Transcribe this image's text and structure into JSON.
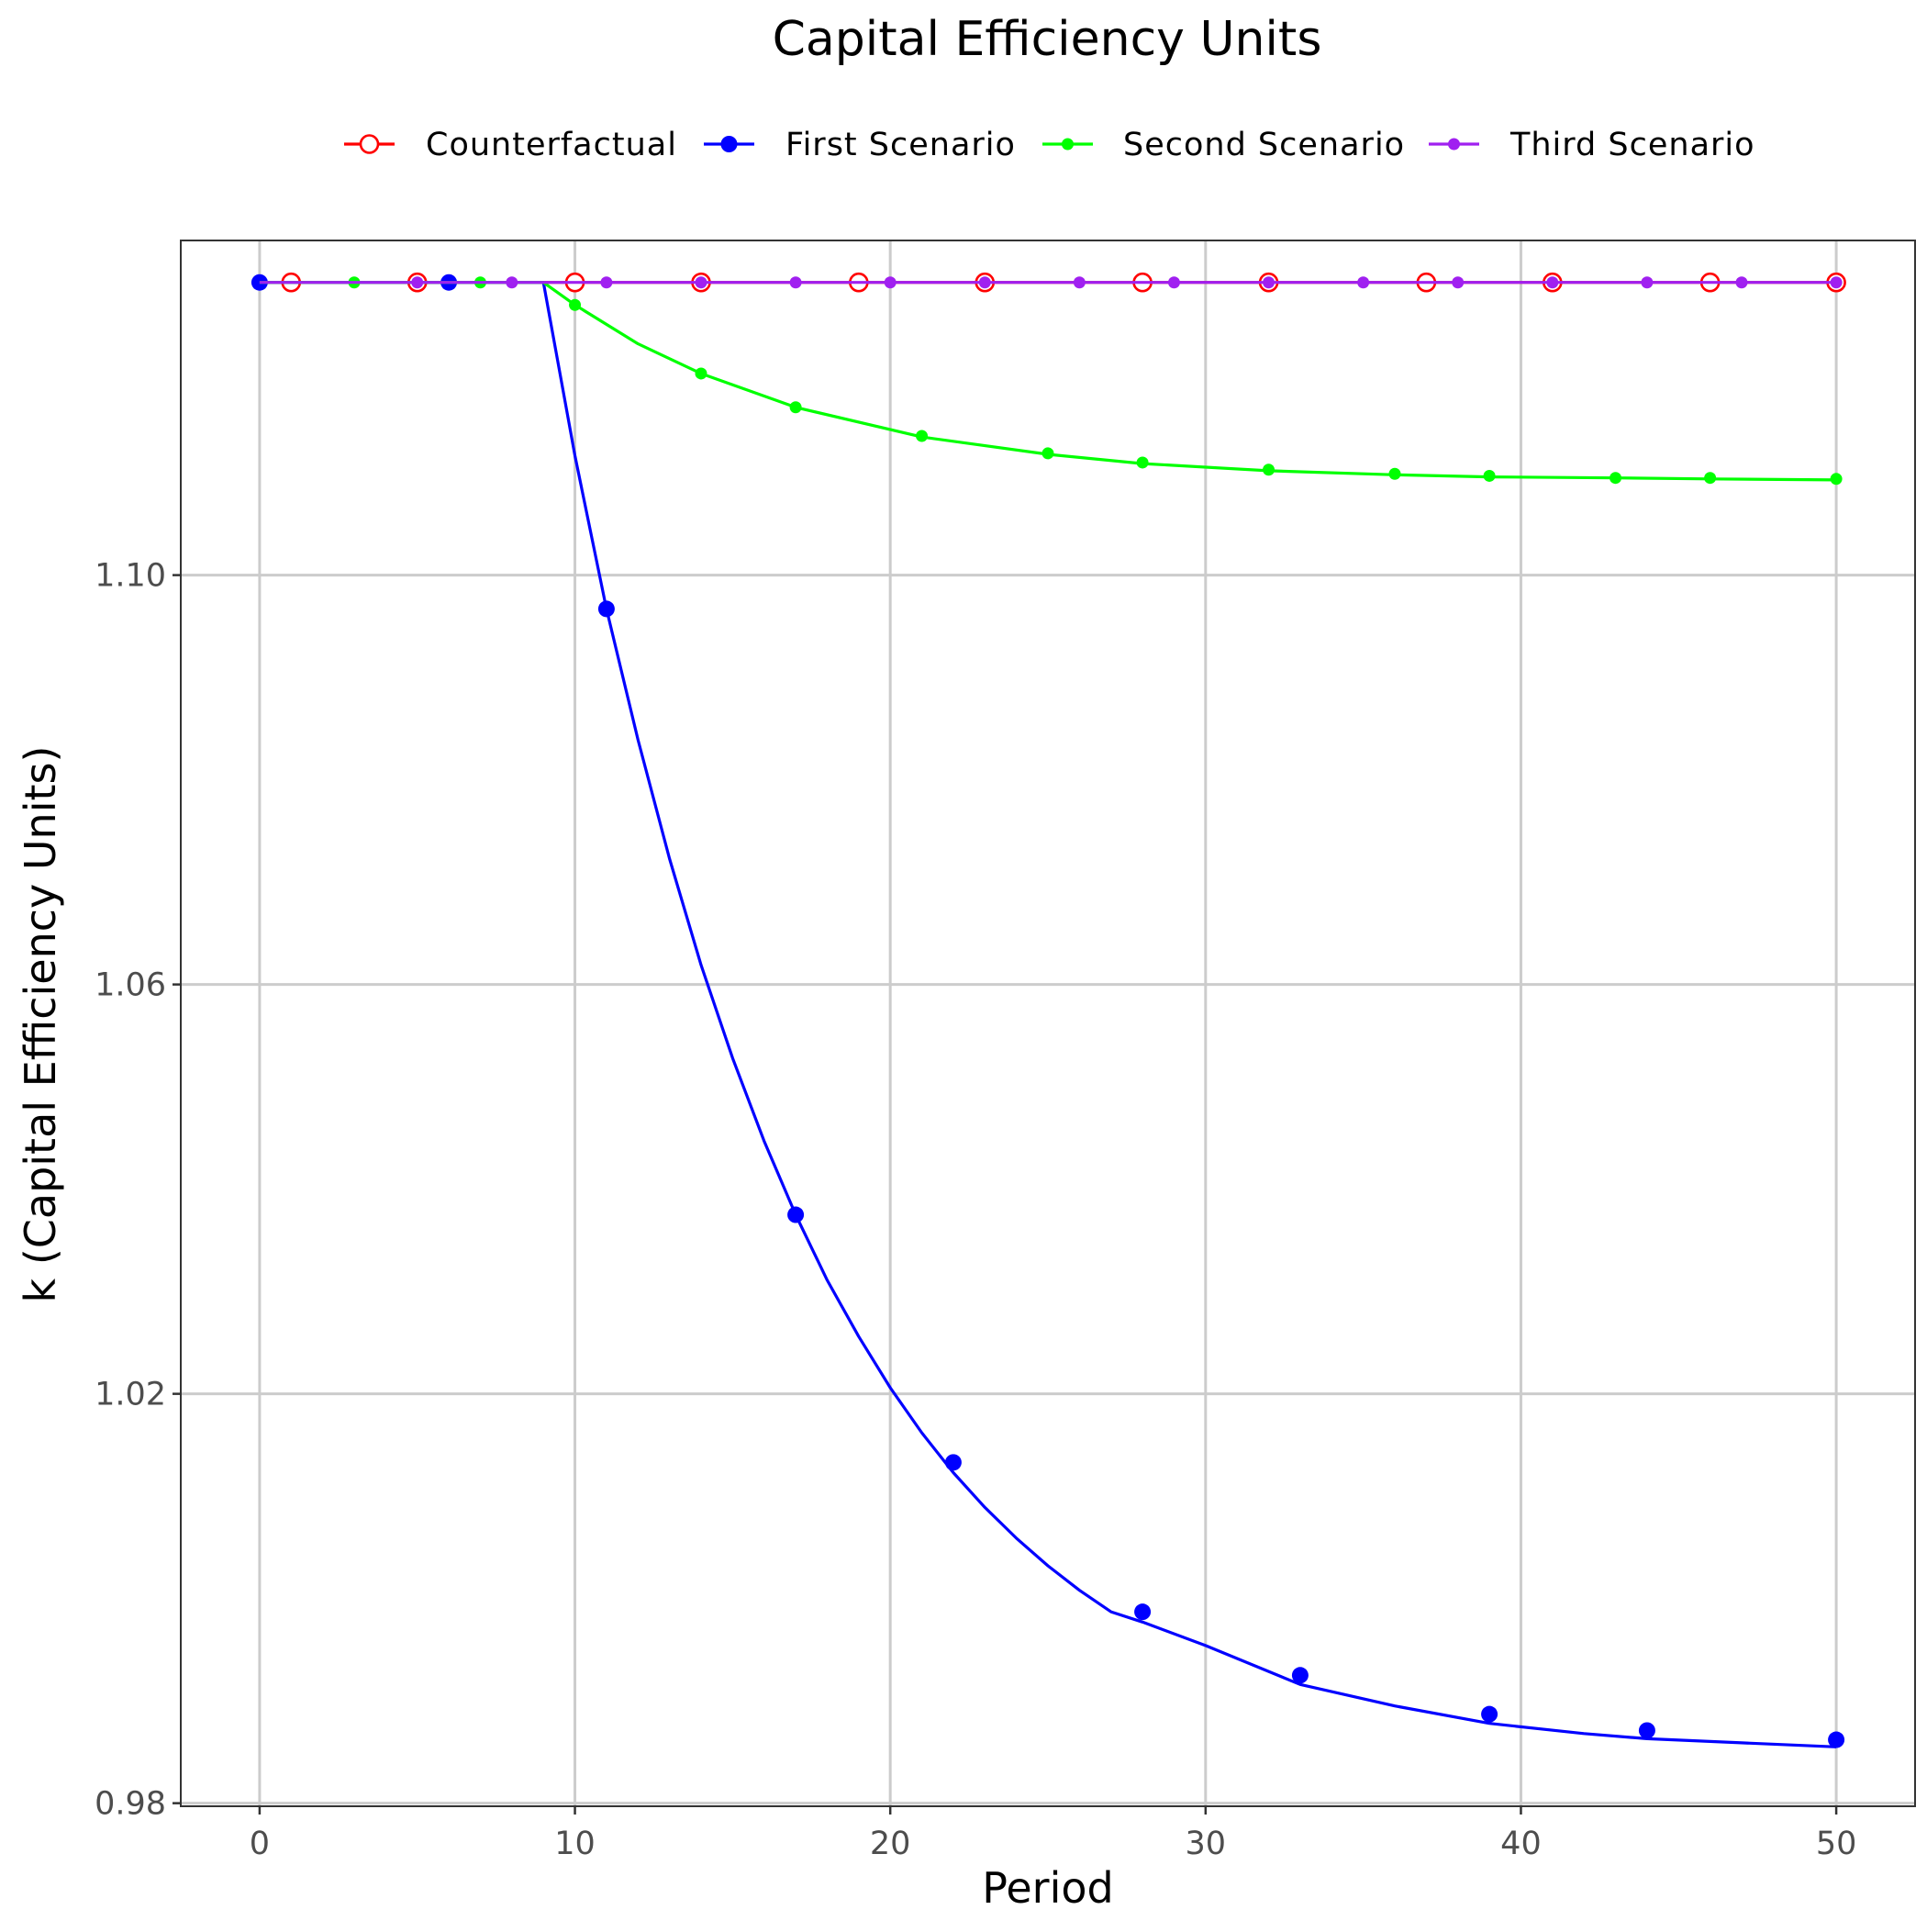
{
  "chart_data": {
    "type": "line",
    "title": "Capital Efficiency Units",
    "xlabel": "Period",
    "ylabel": "k (Capital Efficiency Units)",
    "xlim": [
      -2.5,
      52.5
    ],
    "ylim": [
      0.9797,
      1.1327
    ],
    "x_ticks": [
      0,
      10,
      20,
      30,
      40,
      50
    ],
    "y_ticks": [
      0.98,
      1.02,
      1.06,
      1.1
    ],
    "y_tick_labels": [
      "0.98",
      "1.02",
      "1.06",
      "1.10"
    ],
    "grid": true,
    "legend_position": "top",
    "series": [
      {
        "name": "Counterfactual",
        "color": "#ff0000",
        "marker": "open-circle",
        "line": [
          [
            0,
            1.1286
          ],
          [
            50,
            1.1286
          ]
        ],
        "points": [
          [
            1,
            1.1286
          ],
          [
            5,
            1.1286
          ],
          [
            10,
            1.1286
          ],
          [
            14,
            1.1286
          ],
          [
            19,
            1.1286
          ],
          [
            23,
            1.1286
          ],
          [
            28,
            1.1286
          ],
          [
            32,
            1.1286
          ],
          [
            37,
            1.1286
          ],
          [
            41,
            1.1286
          ],
          [
            46,
            1.1286
          ],
          [
            50,
            1.1286
          ]
        ]
      },
      {
        "name": "First Scenario",
        "color": "#0000ff",
        "marker": "filled-circle",
        "line": [
          [
            0,
            1.1286
          ],
          [
            9,
            1.1286
          ],
          [
            10,
            1.1117
          ],
          [
            11,
            1.0967
          ],
          [
            12,
            1.0839
          ],
          [
            13,
            1.0723
          ],
          [
            14,
            1.0619
          ],
          [
            15,
            1.0528
          ],
          [
            16,
            1.0447
          ],
          [
            17,
            1.0375
          ],
          [
            18,
            1.0311
          ],
          [
            19,
            1.0256
          ],
          [
            20,
            1.0206
          ],
          [
            21,
            1.0162
          ],
          [
            22,
            1.0123
          ],
          [
            23,
            1.0089
          ],
          [
            24,
            1.0059
          ],
          [
            25,
            1.0032
          ],
          [
            26,
            1.0008
          ],
          [
            27,
            0.9987
          ],
          [
            28,
            0.9977
          ],
          [
            30,
            0.9954
          ],
          [
            33,
            0.9916
          ],
          [
            36,
            0.9895
          ],
          [
            39,
            0.9878
          ],
          [
            42,
            0.9868
          ],
          [
            44,
            0.9863
          ],
          [
            47,
            0.9859
          ],
          [
            50,
            0.9855
          ]
        ],
        "points": [
          [
            0,
            1.1286
          ],
          [
            6,
            1.1286
          ],
          [
            11,
            1.0967
          ],
          [
            17,
            1.0375
          ],
          [
            22,
            1.0133
          ],
          [
            28,
            0.9987
          ],
          [
            33,
            0.9925
          ],
          [
            39,
            0.9887
          ],
          [
            44,
            0.9871
          ],
          [
            50,
            0.9862
          ]
        ]
      },
      {
        "name": "Second Scenario",
        "color": "#00ff00",
        "marker": "small-filled-circle",
        "line": [
          [
            0,
            1.1286
          ],
          [
            9,
            1.1286
          ],
          [
            10,
            1.1264
          ],
          [
            12,
            1.1226
          ],
          [
            14,
            1.1197
          ],
          [
            17,
            1.1164
          ],
          [
            21,
            1.1135
          ],
          [
            25,
            1.1118
          ],
          [
            28,
            1.1109
          ],
          [
            32,
            1.1102
          ],
          [
            36,
            1.1098
          ],
          [
            39,
            1.1096
          ],
          [
            43,
            1.1095
          ],
          [
            46,
            1.1094
          ],
          [
            50,
            1.1093
          ]
        ],
        "points": [
          [
            3,
            1.1286
          ],
          [
            7,
            1.1286
          ],
          [
            10,
            1.1264
          ],
          [
            14,
            1.1197
          ],
          [
            17,
            1.1164
          ],
          [
            21,
            1.1136
          ],
          [
            25,
            1.1119
          ],
          [
            28,
            1.111
          ],
          [
            32,
            1.1103
          ],
          [
            36,
            1.1099
          ],
          [
            39,
            1.1097
          ],
          [
            43,
            1.1095
          ],
          [
            46,
            1.1095
          ],
          [
            50,
            1.1094
          ]
        ]
      },
      {
        "name": "Third Scenario",
        "color": "#a020f0",
        "marker": "small-filled-circle",
        "line": [
          [
            0,
            1.1286
          ],
          [
            50,
            1.1286
          ]
        ],
        "points": [
          [
            5,
            1.1286
          ],
          [
            8,
            1.1286
          ],
          [
            11,
            1.1286
          ],
          [
            14,
            1.1286
          ],
          [
            17,
            1.1286
          ],
          [
            20,
            1.1286
          ],
          [
            23,
            1.1286
          ],
          [
            26,
            1.1286
          ],
          [
            29,
            1.1286
          ],
          [
            32,
            1.1286
          ],
          [
            35,
            1.1286
          ],
          [
            38,
            1.1286
          ],
          [
            41,
            1.1286
          ],
          [
            44,
            1.1286
          ],
          [
            47,
            1.1286
          ],
          [
            50,
            1.1286
          ]
        ]
      }
    ]
  }
}
